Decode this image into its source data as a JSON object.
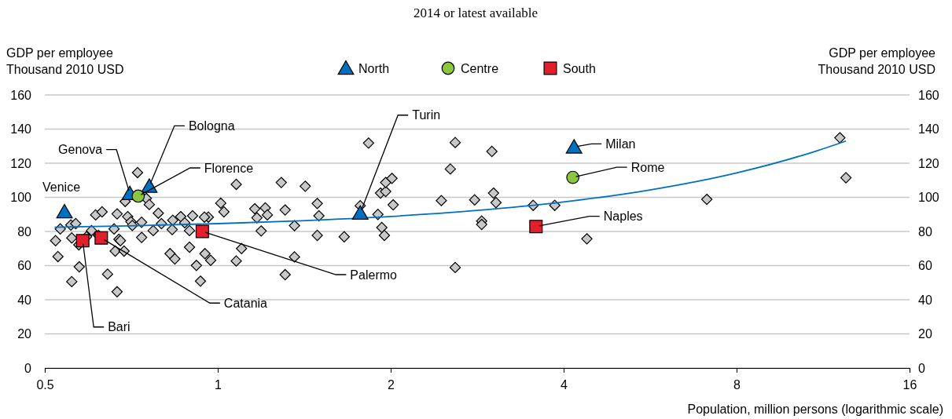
{
  "chart_data": {
    "type": "scatter",
    "title": "2014 or latest available",
    "xlabel": "Population, million persons (logarithmic scale)",
    "ylabel": "GDP per employee\nThousand 2010 USD",
    "y2label": "GDP per employee\nThousand 2010 USD",
    "log": "x",
    "grid": "y",
    "legend": "top",
    "xlim": [
      0.5,
      16
    ],
    "xticks": [
      0.5,
      1,
      2,
      4,
      8,
      16
    ],
    "ylim": [
      0,
      160
    ],
    "yticks": [
      0,
      20,
      40,
      60,
      80,
      100,
      120,
      140,
      160
    ],
    "y2lim": [
      0,
      160
    ],
    "y2ticks": [
      0,
      20,
      40,
      60,
      80,
      100,
      120,
      140,
      160
    ],
    "series": [
      {
        "marker": "diamond",
        "color": "#c8c8c8",
        "x": [
          0.522,
          0.527,
          0.532,
          0.555,
          0.566,
          0.557,
          0.573,
          0.574,
          0.557,
          0.591,
          0.603,
          0.613,
          0.629,
          0.62,
          0.643,
          0.668,
          0.66,
          0.668,
          0.673,
          0.663,
          0.687,
          0.677,
          0.697,
          0.706,
          0.71,
          0.737,
          0.737,
          0.69,
          0.725,
          0.751,
          0.76,
          0.772,
          0.788,
          0.798,
          0.826,
          0.842,
          0.835,
          0.833,
          0.862,
          0.876,
          0.893,
          0.893,
          0.904,
          0.918,
          0.933,
          0.95,
          0.972,
          0.963,
          0.948,
          1.012,
          1.025,
          1.077,
          1.1,
          1.077,
          1.16,
          1.17,
          1.19,
          1.21,
          1.22,
          1.29,
          1.31,
          1.36,
          1.36,
          1.31,
          1.42,
          1.49,
          1.5,
          1.49,
          1.66,
          1.83,
          1.77,
          1.9,
          1.93,
          1.95,
          1.92,
          1.96,
          1.96,
          2.01,
          2.02,
          2.59,
          2.54,
          2.45,
          3.0,
          2.8,
          3.02,
          3.05,
          2.88,
          2.88,
          2.59,
          3.54,
          3.86,
          4.39,
          7.1,
          12.1,
          12.4
        ],
        "values": [
          74.6,
          65.3,
          81.5,
          83.8,
          84.6,
          76.2,
          72.2,
          59.3,
          50.6,
          76.9,
          80.5,
          89.7,
          91.5,
          77.7,
          55.0,
          44.7,
          81.5,
          90.3,
          75.4,
          68.5,
          68.5,
          74.6,
          88.7,
          85.7,
          83.5,
          85.4,
          76.5,
          97.6,
          114.5,
          99.4,
          95.8,
          80.5,
          90.7,
          84.6,
          67.0,
          63.9,
          86.6,
          81.1,
          88.7,
          85.1,
          70.8,
          80.5,
          89.2,
          60.1,
          50.9,
          67.0,
          63.1,
          88.4,
          88.4,
          96.6,
          91.5,
          107.6,
          70.0,
          62.7,
          93.3,
          88.0,
          80.3,
          93.8,
          89.7,
          108.7,
          92.6,
          83.4,
          65.1,
          54.7,
          106.5,
          96.4,
          89.2,
          77.7,
          76.9,
          131.8,
          95.1,
          90.0,
          82.3,
          77.7,
          102.5,
          103.4,
          108.7,
          111.1,
          95.6,
          132.1,
          116.6,
          98.1,
          126.9,
          98.5,
          102.5,
          96.9,
          86.1,
          84.1,
          58.9,
          95.3,
          95.3,
          75.7,
          98.8,
          134.9,
          111.5
        ]
      },
      {
        "type": "line",
        "marker": "none",
        "color": "#0070c0",
        "x": [
          0.52,
          0.7,
          1,
          1.4,
          2,
          2.8,
          4,
          5.6,
          8,
          11,
          12.4
        ],
        "values": [
          82.5,
          83.3,
          84.6,
          86.3,
          88.8,
          92.2,
          97.3,
          104.1,
          114.3,
          127.1,
          133.0
        ]
      },
      {
        "name": "North",
        "marker": "triangle",
        "color": "#0070c0",
        "x": [
          0.541,
          0.703,
          0.76,
          1.77,
          4.17
        ],
        "values": [
          91.5,
          102.2,
          106.5,
          90.7,
          129.5
        ]
      },
      {
        "name": "Centre",
        "marker": "circle",
        "color": "#8cc63e",
        "x": [
          0.727,
          4.15
        ],
        "values": [
          100.7,
          111.7
        ]
      },
      {
        "name": "South",
        "marker": "square",
        "color": "#e2202b",
        "x": [
          0.582,
          0.627,
          0.94,
          3.58
        ],
        "values": [
          74.6,
          76.2,
          80.0,
          82.9
        ]
      }
    ],
    "annotations": [
      {
        "text": "Venice",
        "x": 0.541,
        "y": 91.5
      },
      {
        "text": "Genova",
        "x": 0.703,
        "y": 102.2
      },
      {
        "text": "Bologna",
        "x": 0.76,
        "y": 106.5
      },
      {
        "text": "Florence",
        "x": 0.727,
        "y": 100.7
      },
      {
        "text": "Turin",
        "x": 1.77,
        "y": 90.7
      },
      {
        "text": "Milan",
        "x": 4.17,
        "y": 129.5
      },
      {
        "text": "Rome",
        "x": 4.15,
        "y": 111.7
      },
      {
        "text": "Naples",
        "x": 3.58,
        "y": 82.9
      },
      {
        "text": "Palermo",
        "x": 0.94,
        "y": 80.0
      },
      {
        "text": "Catania",
        "x": 0.627,
        "y": 76.2
      },
      {
        "text": "Bari",
        "x": 0.582,
        "y": 74.6
      }
    ]
  }
}
